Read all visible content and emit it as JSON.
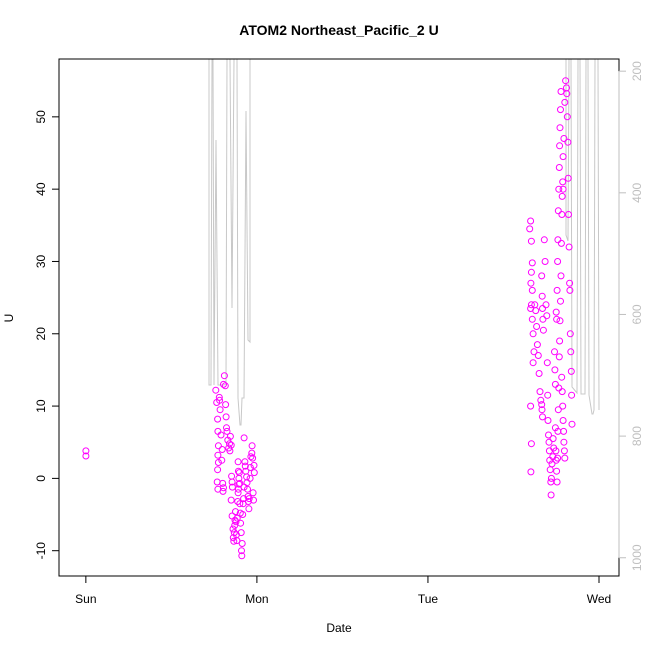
{
  "chart_data": {
    "type": "scatter",
    "title": "ATOM2 Northeast_Pacific_2 U",
    "xlabel": "Date",
    "ylabel": "U",
    "x_ticks": [
      {
        "label": "Sun",
        "day": 0
      },
      {
        "label": "Mon",
        "day": 1
      },
      {
        "label": "Tue",
        "day": 2
      },
      {
        "label": "Wed",
        "day": 3
      }
    ],
    "xlim": [
      -0.157,
      3.117
    ],
    "ylim": [
      -13.5,
      58
    ],
    "y_ticks": [
      -10,
      0,
      10,
      20,
      30,
      40,
      50
    ],
    "right_axis": {
      "ylim_top_to_bottom": [
        180,
        1030
      ],
      "ticks": [
        200,
        400,
        600,
        800,
        1000
      ],
      "color": "#bfbfbf"
    },
    "colors": {
      "points": "#ff00ff",
      "depth_line": "#c8c8c8",
      "axis": "#000000",
      "right_axis": "#bfbfbf"
    },
    "grid": false,
    "series": [
      {
        "points": [
          [
            0.0,
            3.8
          ],
          [
            0.0,
            3.1
          ],
          [
            0.76,
            12.2
          ],
          [
            0.765,
            10.5
          ],
          [
            0.77,
            8.2
          ],
          [
            0.772,
            6.5
          ],
          [
            0.775,
            4.5
          ],
          [
            0.772,
            3.2
          ],
          [
            0.77,
            1.2
          ],
          [
            0.768,
            -0.5
          ],
          [
            0.772,
            -1.5
          ],
          [
            0.775,
            2.2
          ],
          [
            0.78,
            11.2
          ],
          [
            0.782,
            10.8
          ],
          [
            0.785,
            9.5
          ],
          [
            0.79,
            6.0
          ],
          [
            0.795,
            2.5
          ],
          [
            0.8,
            -0.7
          ],
          [
            0.802,
            -1.8
          ],
          [
            0.805,
            -1.3
          ],
          [
            0.797,
            4.0
          ],
          [
            0.805,
            13.0
          ],
          [
            0.81,
            14.2
          ],
          [
            0.815,
            12.8
          ],
          [
            0.817,
            10.2
          ],
          [
            0.82,
            8.5
          ],
          [
            0.822,
            7.0
          ],
          [
            0.825,
            6.5
          ],
          [
            0.83,
            5.3
          ],
          [
            0.835,
            4.2
          ],
          [
            0.84,
            4.8
          ],
          [
            0.842,
            3.8
          ],
          [
            0.845,
            5.8
          ],
          [
            0.85,
            4.6
          ],
          [
            0.852,
            0.3
          ],
          [
            0.855,
            -0.5
          ],
          [
            0.857,
            -1.2
          ],
          [
            0.85,
            -3.0
          ],
          [
            0.855,
            -5.2
          ],
          [
            0.86,
            -7.0
          ],
          [
            0.862,
            -8.2
          ],
          [
            0.865,
            -8.7
          ],
          [
            0.868,
            -7.5
          ],
          [
            0.87,
            -6.5
          ],
          [
            0.872,
            -5.8
          ],
          [
            0.875,
            -4.6
          ],
          [
            0.878,
            -6.0
          ],
          [
            0.88,
            -7.8
          ],
          [
            0.883,
            -8.6
          ],
          [
            0.885,
            -5.5
          ],
          [
            0.888,
            -3.2
          ],
          [
            0.89,
            -2.0
          ],
          [
            0.892,
            -1.5
          ],
          [
            0.895,
            -0.8
          ],
          [
            0.897,
            0.8
          ],
          [
            0.9,
            -3.5
          ],
          [
            0.903,
            -4.8
          ],
          [
            0.905,
            -6.2
          ],
          [
            0.908,
            -7.5
          ],
          [
            0.91,
            -10.0
          ],
          [
            0.912,
            -10.7
          ],
          [
            0.914,
            -9.0
          ],
          [
            0.917,
            -5.0
          ],
          [
            0.92,
            -3.5
          ],
          [
            0.922,
            -2.8
          ],
          [
            0.925,
            -1.2
          ],
          [
            0.89,
            2.3
          ],
          [
            0.892,
            1.0
          ],
          [
            0.895,
            0.0
          ],
          [
            0.9,
            -0.7
          ],
          [
            0.925,
            5.6
          ],
          [
            0.93,
            2.3
          ],
          [
            0.932,
            1.7
          ],
          [
            0.935,
            1.0
          ],
          [
            0.94,
            0.2
          ],
          [
            0.942,
            -0.6
          ],
          [
            0.945,
            -1.5
          ],
          [
            0.948,
            -2.5
          ],
          [
            0.95,
            -3.2
          ],
          [
            0.953,
            -4.2
          ],
          [
            0.955,
            -2.8
          ],
          [
            0.96,
            0.0
          ],
          [
            0.962,
            1.5
          ],
          [
            0.965,
            3.0
          ],
          [
            0.97,
            3.5
          ],
          [
            0.972,
            4.5
          ],
          [
            0.975,
            2.8
          ],
          [
            0.978,
            -2.0
          ],
          [
            0.98,
            -3.0
          ],
          [
            0.983,
            1.8
          ],
          [
            0.985,
            0.8
          ],
          [
            2.595,
            34.5
          ],
          [
            2.6,
            35.6
          ],
          [
            2.605,
            32.8
          ],
          [
            2.61,
            29.8
          ],
          [
            2.605,
            28.5
          ],
          [
            2.602,
            27.0
          ],
          [
            2.61,
            26.0
          ],
          [
            2.605,
            24.0
          ],
          [
            2.6,
            23.5
          ],
          [
            2.61,
            22.0
          ],
          [
            2.615,
            20.0
          ],
          [
            2.62,
            17.5
          ],
          [
            2.615,
            16.0
          ],
          [
            2.6,
            10.0
          ],
          [
            2.605,
            4.8
          ],
          [
            2.602,
            0.9
          ],
          [
            2.625,
            24.0
          ],
          [
            2.63,
            23.2
          ],
          [
            2.635,
            21.0
          ],
          [
            2.64,
            18.5
          ],
          [
            2.645,
            17.0
          ],
          [
            2.65,
            14.5
          ],
          [
            2.655,
            12.0
          ],
          [
            2.66,
            10.8
          ],
          [
            2.665,
            10.2
          ],
          [
            2.667,
            9.5
          ],
          [
            2.67,
            8.5
          ],
          [
            2.665,
            28.0
          ],
          [
            2.668,
            25.2
          ],
          [
            2.67,
            23.5
          ],
          [
            2.672,
            22.0
          ],
          [
            2.675,
            20.5
          ],
          [
            2.68,
            33.0
          ],
          [
            2.685,
            30.0
          ],
          [
            2.69,
            24.0
          ],
          [
            2.695,
            22.5
          ],
          [
            2.698,
            16.0
          ],
          [
            2.7,
            11.5
          ],
          [
            2.702,
            8.0
          ],
          [
            2.705,
            6.0
          ],
          [
            2.708,
            5.0
          ],
          [
            2.71,
            3.8
          ],
          [
            2.712,
            2.5
          ],
          [
            2.715,
            1.2
          ],
          [
            2.718,
            -0.5
          ],
          [
            2.72,
            -2.3
          ],
          [
            2.722,
            0.0
          ],
          [
            2.725,
            2.0
          ],
          [
            2.73,
            3.0
          ],
          [
            2.732,
            5.5
          ],
          [
            2.735,
            4.2
          ],
          [
            2.74,
            17.5
          ],
          [
            2.742,
            15.0
          ],
          [
            2.745,
            13.0
          ],
          [
            2.75,
            23.0
          ],
          [
            2.752,
            22.0
          ],
          [
            2.755,
            26.0
          ],
          [
            2.758,
            30.0
          ],
          [
            2.76,
            33.0
          ],
          [
            2.762,
            37.0
          ],
          [
            2.765,
            40.0
          ],
          [
            2.768,
            43.0
          ],
          [
            2.77,
            46.0
          ],
          [
            2.772,
            48.5
          ],
          [
            2.775,
            51.0
          ],
          [
            2.778,
            53.5
          ],
          [
            2.745,
            7.0
          ],
          [
            2.748,
            3.8
          ],
          [
            2.75,
            2.5
          ],
          [
            2.752,
            1.0
          ],
          [
            2.755,
            -0.5
          ],
          [
            2.758,
            2.8
          ],
          [
            2.76,
            6.5
          ],
          [
            2.762,
            9.5
          ],
          [
            2.765,
            12.5
          ],
          [
            2.768,
            16.8
          ],
          [
            2.77,
            19.0
          ],
          [
            2.772,
            21.8
          ],
          [
            2.775,
            24.5
          ],
          [
            2.778,
            28.0
          ],
          [
            2.78,
            32.5
          ],
          [
            2.783,
            36.5
          ],
          [
            2.785,
            39.0
          ],
          [
            2.788,
            41.0
          ],
          [
            2.79,
            40.0
          ],
          [
            2.782,
            14.0
          ],
          [
            2.785,
            12.0
          ],
          [
            2.788,
            10.0
          ],
          [
            2.79,
            8.0
          ],
          [
            2.793,
            6.5
          ],
          [
            2.795,
            5.0
          ],
          [
            2.798,
            3.8
          ],
          [
            2.8,
            2.8
          ],
          [
            2.79,
            44.5
          ],
          [
            2.795,
            47.0
          ],
          [
            2.8,
            52.0
          ],
          [
            2.805,
            55.0
          ],
          [
            2.81,
            54.0
          ],
          [
            2.812,
            53.2
          ],
          [
            2.815,
            50.0
          ],
          [
            2.818,
            46.5
          ],
          [
            2.82,
            41.5
          ],
          [
            2.822,
            36.5
          ],
          [
            2.825,
            32.0
          ],
          [
            2.828,
            27.0
          ],
          [
            2.83,
            26.0
          ],
          [
            2.832,
            20.0
          ],
          [
            2.835,
            17.5
          ],
          [
            2.838,
            14.8
          ],
          [
            2.84,
            11.5
          ],
          [
            2.842,
            7.5
          ]
        ]
      }
    ]
  }
}
